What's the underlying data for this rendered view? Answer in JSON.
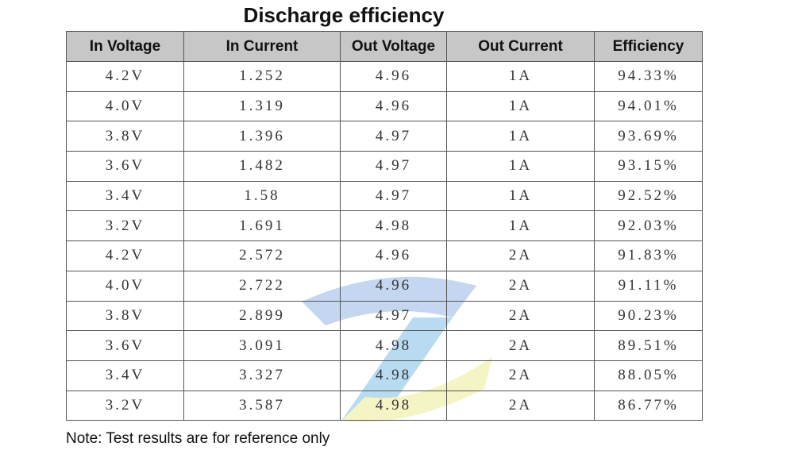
{
  "title": "Discharge efficiency",
  "table": {
    "header": [
      "In Voltage",
      "In Current",
      "Out Voltage",
      "Out Current",
      "Efficiency"
    ],
    "rows": [
      [
        "4.2V",
        "1.252",
        "4.96",
        "1A",
        "94.33%"
      ],
      [
        "4.0V",
        "1.319",
        "4.96",
        "1A",
        "94.01%"
      ],
      [
        "3.8V",
        "1.396",
        "4.97",
        "1A",
        "93.69%"
      ],
      [
        "3.6V",
        "1.482",
        "4.97",
        "1A",
        "93.15%"
      ],
      [
        "3.4V",
        "1.58",
        "4.97",
        "1A",
        "92.52%"
      ],
      [
        "3.2V",
        "1.691",
        "4.98",
        "1A",
        "92.03%"
      ],
      [
        "4.2V",
        "2.572",
        "4.96",
        "2A",
        "91.83%"
      ],
      [
        "4.0V",
        "2.722",
        "4.96",
        "2A",
        "91.11%"
      ],
      [
        "3.8V",
        "2.899",
        "4.97",
        "2A",
        "90.23%"
      ],
      [
        "3.6V",
        "3.091",
        "4.98",
        "2A",
        "89.51%"
      ],
      [
        "3.4V",
        "3.327",
        "4.98",
        "2A",
        "88.05%"
      ],
      [
        "3.2V",
        "3.587",
        "4.98",
        "2A",
        "86.77%"
      ]
    ]
  },
  "note": "Note: Test results are for reference only"
}
